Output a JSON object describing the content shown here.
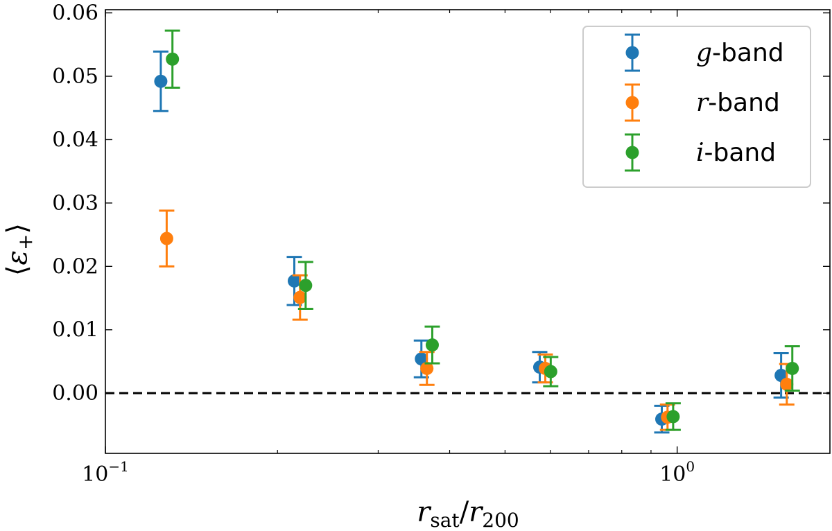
{
  "chart_data": {
    "type": "scatter",
    "xscale": "log",
    "xlim": [
      0.1,
      1.85
    ],
    "ylim": [
      -0.0095,
      0.0605
    ],
    "xlabel": {
      "base": "r",
      "sub1": "sat",
      "sep": "/",
      "base2": "r",
      "sub2": "200"
    },
    "ylabel": {
      "left": "⟨",
      "sym": "ε",
      "sub": "+",
      "right": "⟩"
    },
    "xticks": [
      {
        "value": 0.1,
        "base": "10",
        "exp": "−1"
      },
      {
        "value": 1,
        "base": "10",
        "exp": "0"
      }
    ],
    "yticks": [
      {
        "value": -0.0,
        "label": "0.00"
      },
      {
        "value": 0.01,
        "label": "0.01"
      },
      {
        "value": 0.02,
        "label": "0.02"
      },
      {
        "value": 0.03,
        "label": "0.03"
      },
      {
        "value": 0.04,
        "label": "0.04"
      },
      {
        "value": 0.05,
        "label": "0.05"
      },
      {
        "value": 0.06,
        "label": "0.06"
      }
    ],
    "reference_line": {
      "y": 0.0,
      "style": "dashed",
      "color": "#000000"
    },
    "legend": {
      "placement": "top-right"
    },
    "series": [
      {
        "name": "g-band",
        "name_var": "g",
        "name_rest": "-band",
        "color": "#1f77b4",
        "points": [
          {
            "x": 0.125,
            "y": 0.0492,
            "err": 0.0047
          },
          {
            "x": 0.214,
            "y": 0.0177,
            "err": 0.0038
          },
          {
            "x": 0.357,
            "y": 0.0054,
            "err": 0.0029
          },
          {
            "x": 0.575,
            "y": 0.0041,
            "err": 0.0024
          },
          {
            "x": 0.94,
            "y": -0.0041,
            "err": 0.0021
          },
          {
            "x": 1.52,
            "y": 0.0028,
            "err": 0.0035
          }
        ]
      },
      {
        "name": "r-band",
        "name_var": "r",
        "name_rest": "-band",
        "color": "#ff7f0e",
        "points": [
          {
            "x": 0.128,
            "y": 0.0244,
            "err": 0.0044
          },
          {
            "x": 0.219,
            "y": 0.0151,
            "err": 0.0035
          },
          {
            "x": 0.365,
            "y": 0.0039,
            "err": 0.0026
          },
          {
            "x": 0.588,
            "y": 0.0039,
            "err": 0.0022
          },
          {
            "x": 0.962,
            "y": -0.0038,
            "err": 0.002
          },
          {
            "x": 1.555,
            "y": 0.0014,
            "err": 0.0032
          }
        ]
      },
      {
        "name": "i-band",
        "name_var": "i",
        "name_rest": "-band",
        "color": "#2ca02c",
        "points": [
          {
            "x": 0.131,
            "y": 0.0527,
            "err": 0.0045
          },
          {
            "x": 0.224,
            "y": 0.017,
            "err": 0.0037
          },
          {
            "x": 0.373,
            "y": 0.0076,
            "err": 0.0029
          },
          {
            "x": 0.601,
            "y": 0.0034,
            "err": 0.0023
          },
          {
            "x": 0.984,
            "y": -0.0037,
            "err": 0.0021
          },
          {
            "x": 1.59,
            "y": 0.0039,
            "err": 0.0035
          }
        ]
      }
    ]
  }
}
